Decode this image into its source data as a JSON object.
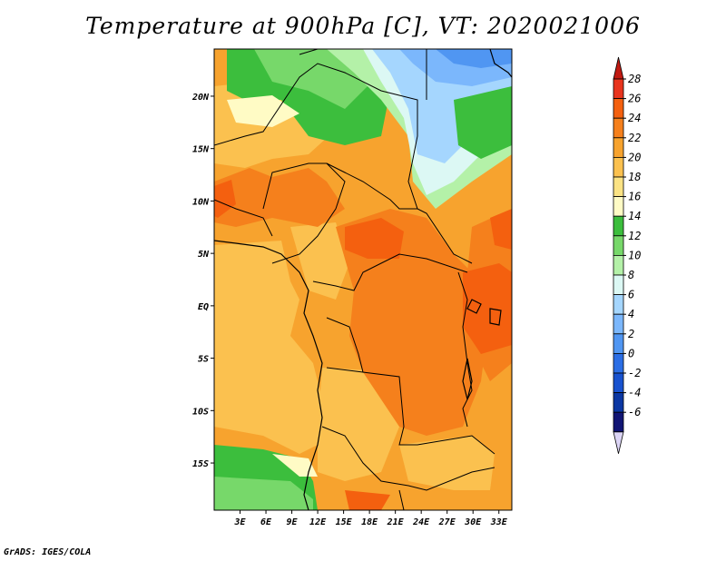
{
  "title": "Temperature at 900hPa [C], VT: 2020021006",
  "credit": "GrADS: IGES/COLA",
  "map": {
    "lon_range": [
      0,
      34.5
    ],
    "lat_range": [
      -19.5,
      24.5
    ],
    "x_ticks": [
      "3E",
      "6E",
      "9E",
      "12E",
      "15E",
      "18E",
      "21E",
      "24E",
      "27E",
      "30E",
      "33E"
    ],
    "x_tick_values": [
      3,
      6,
      9,
      12,
      15,
      18,
      21,
      24,
      27,
      30,
      33
    ],
    "y_ticks": [
      "20N",
      "15N",
      "10N",
      "5N",
      "EQ",
      "5S",
      "10S",
      "15S"
    ],
    "y_tick_values": [
      20,
      15,
      10,
      5,
      0,
      -5,
      -10,
      -15
    ]
  },
  "colorbar": {
    "labels": [
      "28",
      "26",
      "24",
      "22",
      "20",
      "18",
      "16",
      "14",
      "12",
      "10",
      "8",
      "6",
      "4",
      "2",
      "0",
      "-2",
      "-4",
      "-6"
    ],
    "colors": [
      "#e8341d",
      "#f4600f",
      "#f5801c",
      "#f7a32e",
      "#fbc14f",
      "#fbe384",
      "#fffbc5",
      "#3cbe3d",
      "#77d86a",
      "#b4f1a8",
      "#dcf8f4",
      "#a5d6fe",
      "#7bb7fc",
      "#5096f2",
      "#2b6ee5",
      "#1852cf",
      "#0b37a3",
      "#111574"
    ],
    "top_color": "#c11a12",
    "bottom_color": "#dcd5f6"
  }
}
